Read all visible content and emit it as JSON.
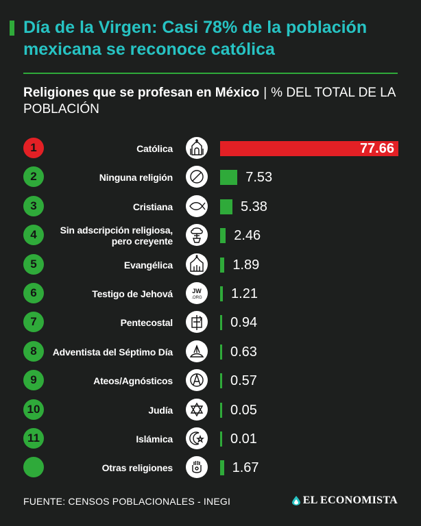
{
  "headline": "Día de la Virgen: Casi 78% de la población mexicana se reconoce católica",
  "subtitle": {
    "main": "Religiones que se profesan en México",
    "separator": "|",
    "unit": "% DEL TOTAL DE LA POBLACIÓN"
  },
  "colors": {
    "background": "#1d1f1e",
    "headline": "#27c3c3",
    "accent_green": "#2faa3a",
    "highlight_red": "#e32025"
  },
  "chart_data": {
    "type": "bar",
    "orientation": "horizontal",
    "title": "Religiones que se profesan en México",
    "unit": "% DEL TOTAL DE LA POBLACIÓN",
    "categories": [
      "Católica",
      "Ninguna religión",
      "Cristiana",
      "Sin adscripción religiosa, pero creyente",
      "Evangélica",
      "Testigo de Jehová",
      "Pentecostal",
      "Adventista del Séptimo Día",
      "Ateos/Agnósticos",
      "Judía",
      "Islámica",
      "Otras religiones"
    ],
    "ranks": [
      "1",
      "2",
      "3",
      "4",
      "5",
      "6",
      "7",
      "8",
      "9",
      "10",
      "11",
      ""
    ],
    "values": [
      77.66,
      7.53,
      5.38,
      2.46,
      1.89,
      1.21,
      0.94,
      0.63,
      0.57,
      0.05,
      0.01,
      1.67
    ],
    "value_labels": [
      "77.66",
      "7.53",
      "5.38",
      "2.46",
      "1.89",
      "1.21",
      "0.94",
      "0.63",
      "0.57",
      "0.05",
      "0.01",
      "1.67"
    ],
    "icons": [
      "cathedral-icon",
      "no-symbol-icon",
      "ichthys-fish-icon",
      "praying-hands-icon",
      "church-icon",
      "jw-org-icon",
      "pentecostal-icon",
      "adventist-icon",
      "atheist-symbol-icon",
      "star-of-david-icon",
      "crescent-star-icon",
      "hamsa-icon"
    ],
    "xlim": [
      0,
      77.66
    ],
    "grid": false,
    "legend": "none"
  },
  "footer": {
    "source": "FUENTE: CENSOS POBLACIONALES - INEGI",
    "brand": "EL ECONOMISTA",
    "brand_icon": "droplet-logo-icon"
  }
}
